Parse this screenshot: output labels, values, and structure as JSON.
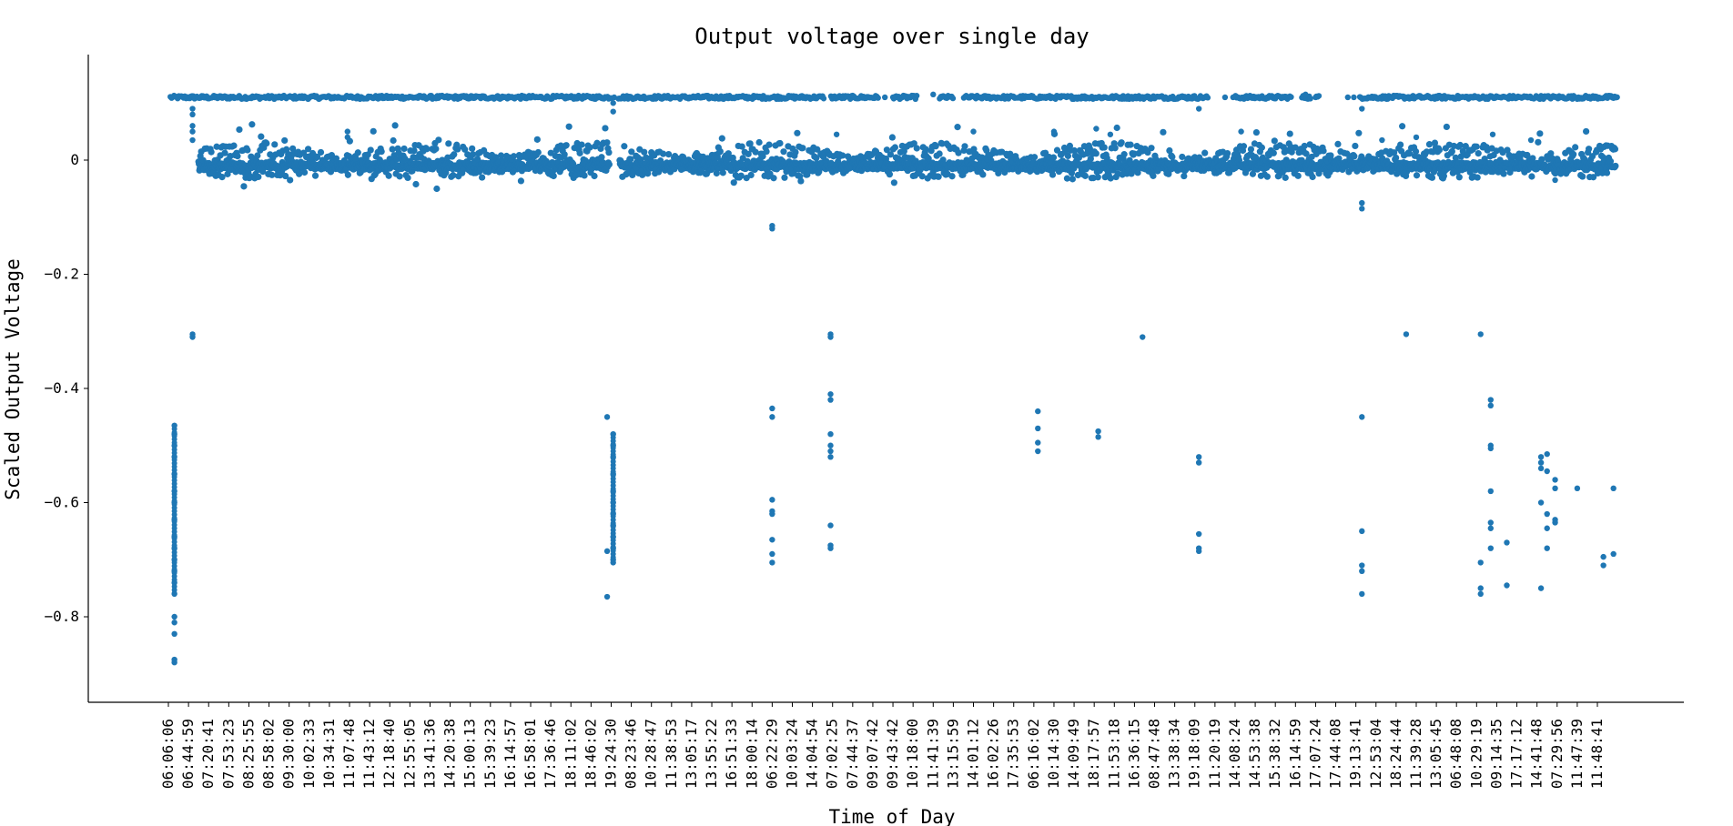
{
  "chart_data": {
    "type": "scatter",
    "title": "Output voltage over single day",
    "xlabel": "Time of Day",
    "ylabel": "Scaled Output Voltage",
    "ylim": [
      -0.95,
      0.18
    ],
    "yticks": [
      0,
      -0.2,
      -0.4,
      -0.6,
      -0.8
    ],
    "ytick_labels": [
      "0",
      "−0.2",
      "−0.4",
      "−0.6",
      "−0.8"
    ],
    "x_tick_labels": [
      "06:06:06",
      "06:44:59",
      "07:20:41",
      "07:53:23",
      "08:25:55",
      "08:58:02",
      "09:30:00",
      "10:02:33",
      "10:34:31",
      "11:07:48",
      "11:43:12",
      "12:18:40",
      "12:55:05",
      "13:41:36",
      "14:20:38",
      "15:00:13",
      "15:39:23",
      "16:14:57",
      "16:58:01",
      "17:36:46",
      "18:11:02",
      "18:46:02",
      "19:24:30",
      "08:23:46",
      "10:28:47",
      "11:38:53",
      "13:05:17",
      "13:55:22",
      "16:51:33",
      "18:00:14",
      "06:22:29",
      "10:03:24",
      "14:04:54",
      "07:02:25",
      "07:44:37",
      "09:07:42",
      "09:43:42",
      "10:18:00",
      "11:41:39",
      "13:15:59",
      "14:01:12",
      "16:02:26",
      "17:35:53",
      "06:16:02",
      "10:14:30",
      "14:09:49",
      "18:17:57",
      "11:53:18",
      "16:36:15",
      "08:47:48",
      "13:38:34",
      "19:18:09",
      "11:20:19",
      "14:08:24",
      "14:53:38",
      "15:38:32",
      "16:14:59",
      "17:07:24",
      "17:44:08",
      "19:13:41",
      "12:53:04",
      "18:24:44",
      "11:39:28",
      "13:05:45",
      "06:48:08",
      "10:29:19",
      "09:14:35",
      "17:17:12",
      "14:41:48",
      "07:29:56",
      "11:47:39",
      "11:48:41"
    ],
    "n_ticks_positions": 72,
    "marker_color": "#1f77b4",
    "grid": false,
    "series": [
      {
        "upper_band_level": 0.11,
        "upper_band_gaps": [
          [
            22.0,
            22.3
          ],
          [
            32.6,
            32.9
          ],
          [
            35.3,
            36.0
          ],
          [
            37.2,
            38.3
          ],
          [
            39.0,
            39.5
          ],
          [
            51.7,
            53.0
          ],
          [
            55.8,
            56.3
          ],
          [
            56.8,
            57.0
          ],
          [
            57.2,
            59.2
          ]
        ],
        "lower_band_level": -0.01,
        "lower_band_range": [
          1.5,
          71.9
        ]
      }
    ],
    "outlier_columns": [
      {
        "x": 0.3,
        "y": [
          -0.465,
          -0.48,
          -0.5,
          -0.52,
          -0.55,
          -0.58,
          -0.6,
          -0.63,
          -0.66,
          -0.68,
          -0.7,
          -0.72,
          -0.74,
          -0.76,
          -0.8,
          -0.81,
          -0.83,
          -0.875,
          -0.88
        ]
      },
      {
        "x": 1.2,
        "y": [
          0.09,
          0.08,
          0.06,
          0.05,
          0.035,
          -0.305,
          -0.31
        ]
      },
      {
        "x": 21.8,
        "y": [
          -0.45,
          -0.685,
          -0.765
        ]
      },
      {
        "x": 22.1,
        "y": [
          0.1,
          0.085,
          -0.48,
          -0.5,
          -0.52,
          -0.55,
          -0.58,
          -0.6,
          -0.62,
          -0.64,
          -0.66,
          -0.68,
          -0.7,
          -0.705
        ]
      },
      {
        "x": 30.0,
        "y": [
          -0.115,
          -0.12,
          -0.435,
          -0.45,
          -0.595,
          -0.615,
          -0.62,
          -0.665,
          -0.69,
          -0.705
        ]
      },
      {
        "x": 32.9,
        "y": [
          -0.305,
          -0.31,
          -0.41,
          -0.42,
          -0.48,
          -0.5,
          -0.51,
          -0.52,
          -0.64,
          -0.675,
          -0.68
        ]
      },
      {
        "x": 43.2,
        "y": [
          -0.44,
          -0.47,
          -0.495,
          -0.51
        ]
      },
      {
        "x": 46.2,
        "y": [
          -0.475,
          -0.485
        ]
      },
      {
        "x": 48.4,
        "y": [
          -0.31
        ]
      },
      {
        "x": 51.2,
        "y": [
          0.09,
          -0.52,
          -0.53,
          -0.655,
          -0.68,
          -0.685
        ]
      },
      {
        "x": 59.3,
        "y": [
          0.09,
          -0.075,
          -0.085,
          -0.45,
          -0.65,
          -0.71,
          -0.72,
          -0.76
        ]
      },
      {
        "x": 61.5,
        "y": [
          -0.305
        ]
      },
      {
        "x": 65.2,
        "y": [
          -0.305,
          -0.705,
          -0.75,
          -0.76
        ]
      },
      {
        "x": 65.7,
        "y": [
          -0.42,
          -0.43,
          -0.5,
          -0.505,
          -0.58,
          -0.635,
          -0.645,
          -0.68
        ]
      },
      {
        "x": 66.5,
        "y": [
          -0.67,
          -0.745
        ]
      },
      {
        "x": 68.2,
        "y": [
          -0.52,
          -0.53,
          -0.54,
          -0.6,
          -0.75
        ]
      },
      {
        "x": 68.5,
        "y": [
          -0.515,
          -0.545,
          -0.62,
          -0.645,
          -0.68
        ]
      },
      {
        "x": 68.9,
        "y": [
          -0.035,
          -0.56,
          -0.575,
          -0.63,
          -0.635
        ]
      },
      {
        "x": 70.0,
        "y": [
          -0.575
        ]
      },
      {
        "x": 71.3,
        "y": [
          -0.695,
          -0.71
        ]
      },
      {
        "x": 71.8,
        "y": [
          -0.575,
          -0.69
        ]
      }
    ]
  }
}
